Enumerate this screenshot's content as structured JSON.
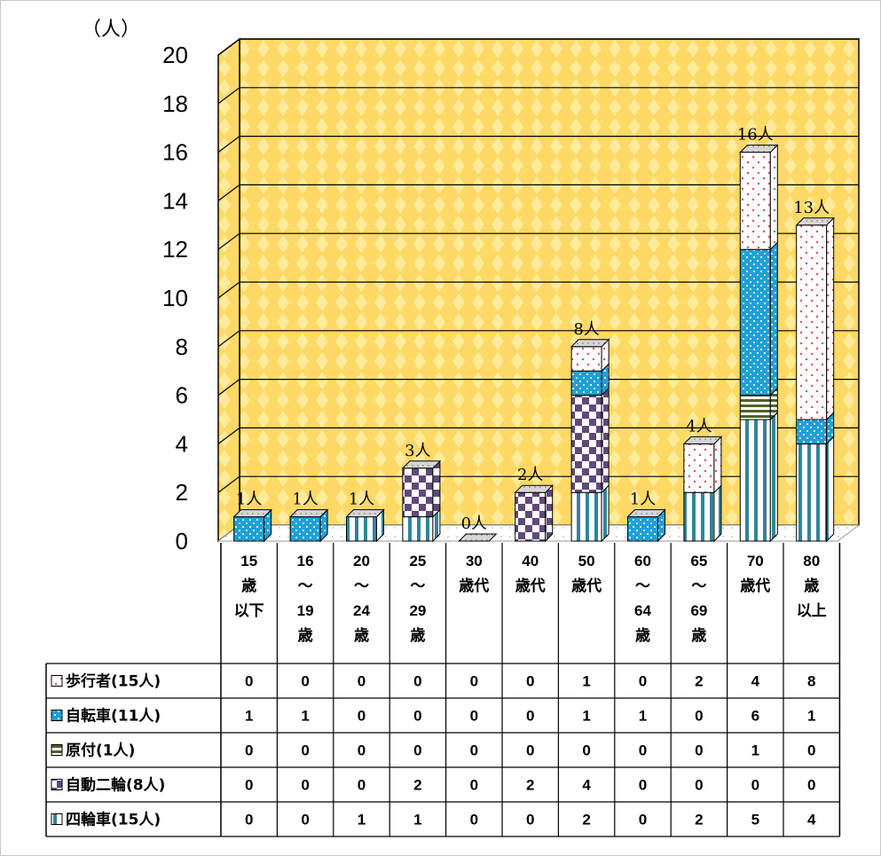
{
  "chart_data": {
    "type": "bar",
    "stacked": true,
    "unit_label": "（人）",
    "ylim": [
      0,
      20
    ],
    "yticks": [
      "0",
      "2",
      "4",
      "6",
      "8",
      "10",
      "12",
      "14",
      "16",
      "18",
      "20"
    ],
    "categories": [
      [
        "15",
        "歳",
        "以下"
      ],
      [
        "16",
        "～",
        "19",
        "歳"
      ],
      [
        "20",
        "～",
        "24",
        "歳"
      ],
      [
        "25",
        "～",
        "29",
        "歳"
      ],
      [
        "30",
        "歳代"
      ],
      [
        "40",
        "歳代"
      ],
      [
        "50",
        "歳代"
      ],
      [
        "60",
        "～",
        "64",
        "歳"
      ],
      [
        "65",
        "～",
        "69",
        "歳"
      ],
      [
        "70",
        "歳代"
      ],
      [
        "80",
        "歳",
        "以上"
      ]
    ],
    "series": [
      {
        "name": "四輪車(15人)",
        "pattern": "stripes",
        "color": "#31849b",
        "values": [
          0,
          0,
          1,
          1,
          0,
          0,
          2,
          0,
          2,
          5,
          4
        ]
      },
      {
        "name": "自動二輪(8人)",
        "pattern": "checker",
        "color": "#5f497a",
        "values": [
          0,
          0,
          0,
          2,
          0,
          2,
          4,
          0,
          0,
          0,
          0
        ]
      },
      {
        "name": "原付(1人)",
        "pattern": "hstripe",
        "color": "#4f6228",
        "values": [
          0,
          0,
          0,
          0,
          0,
          0,
          0,
          0,
          0,
          1,
          0
        ]
      },
      {
        "name": "自転車(11人)",
        "pattern": "dots",
        "color": "#1fa0d6",
        "values": [
          1,
          1,
          0,
          0,
          0,
          0,
          1,
          1,
          0,
          6,
          1
        ]
      },
      {
        "name": "歩行者(15人)",
        "pattern": "sparse",
        "color": "#e0505a",
        "values": [
          0,
          0,
          0,
          0,
          0,
          0,
          1,
          0,
          2,
          4,
          8
        ]
      }
    ],
    "table_rows": [
      {
        "name": "歩行者(15人)",
        "values": [
          0,
          0,
          0,
          0,
          0,
          0,
          1,
          0,
          2,
          4,
          8
        ]
      },
      {
        "name": "自転車(11人)",
        "values": [
          1,
          1,
          0,
          0,
          0,
          0,
          1,
          1,
          0,
          6,
          1
        ]
      },
      {
        "name": "原付(1人)",
        "values": [
          0,
          0,
          0,
          0,
          0,
          0,
          0,
          0,
          0,
          1,
          0
        ]
      },
      {
        "name": "自動二輪(8人)",
        "values": [
          0,
          0,
          0,
          2,
          0,
          2,
          4,
          0,
          0,
          0,
          0
        ]
      },
      {
        "name": "四輪車(15人)",
        "values": [
          0,
          0,
          1,
          1,
          0,
          0,
          2,
          0,
          2,
          5,
          4
        ]
      }
    ],
    "totals": [
      "1人",
      "1人",
      "1人",
      "3人",
      "0人",
      "2人",
      "8人",
      "1人",
      "4人",
      "16人",
      "13人"
    ],
    "grid": true,
    "background_color": "#ffd966"
  }
}
